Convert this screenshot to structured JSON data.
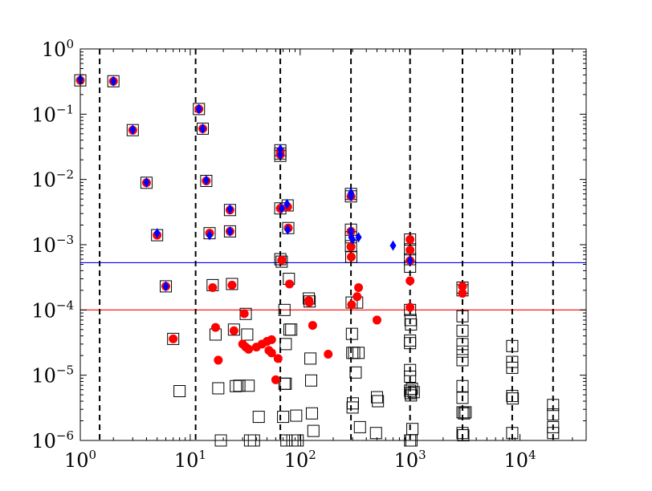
{
  "chart_data": {
    "type": "scatter",
    "x_scale": "log",
    "y_scale": "log",
    "xlim": [
      1,
      40000
    ],
    "ylim": [
      1e-06,
      1
    ],
    "x_ticks": [
      {
        "value": 1,
        "base": "10",
        "exp": "0"
      },
      {
        "value": 10,
        "base": "10",
        "exp": "1"
      },
      {
        "value": 100,
        "base": "10",
        "exp": "2"
      },
      {
        "value": 1000,
        "base": "10",
        "exp": "3"
      },
      {
        "value": 10000,
        "base": "10",
        "exp": "4"
      }
    ],
    "y_ticks": [
      {
        "value": 1e-06,
        "base": "10",
        "exp": "−6"
      },
      {
        "value": 1e-05,
        "base": "10",
        "exp": "−5"
      },
      {
        "value": 0.0001,
        "base": "10",
        "exp": "−4"
      },
      {
        "value": 0.001,
        "base": "10",
        "exp": "−3"
      },
      {
        "value": 0.01,
        "base": "10",
        "exp": "−2"
      },
      {
        "value": 0.1,
        "base": "10",
        "exp": "−1"
      },
      {
        "value": 1,
        "base": "10",
        "exp": "0"
      }
    ],
    "vertical_lines": [
      1.5,
      11.2,
      66,
      290,
      1000,
      3000,
      8500,
      20000
    ],
    "horizontal_lines": [
      {
        "y": 0.00053,
        "color": "#0000ff"
      },
      {
        "y": 0.0001,
        "color": "#ff0000"
      }
    ],
    "colors": {
      "squares": "#000000",
      "circles": "#ff0000",
      "diamonds": "#0000ff",
      "vlines": "#000000"
    },
    "series": [
      {
        "marker": "square",
        "points": [
          [
            1,
            0.33
          ],
          [
            2,
            0.32
          ],
          [
            3,
            0.057
          ],
          [
            4,
            0.0089
          ],
          [
            5,
            0.0014
          ],
          [
            6,
            0.00023
          ],
          [
            7,
            3.6e-05
          ],
          [
            8,
            5.7e-06
          ],
          [
            12,
            0.12
          ],
          [
            13,
            0.06
          ],
          [
            14,
            0.0095
          ],
          [
            15,
            0.0015
          ],
          [
            16,
            0.00024
          ],
          [
            17,
            4.2e-05
          ],
          [
            18,
            6.3e-06
          ],
          [
            19,
            1e-06
          ],
          [
            23,
            0.0034
          ],
          [
            23,
            0.0016
          ],
          [
            24,
            0.00025
          ],
          [
            25,
            5e-05
          ],
          [
            26,
            6.8e-06
          ],
          [
            28,
            6.9e-06
          ],
          [
            32,
            8.7e-05
          ],
          [
            33,
            4.2e-05
          ],
          [
            34,
            6.9e-06
          ],
          [
            35,
            1e-06
          ],
          [
            38,
            1e-06
          ],
          [
            42,
            2.3e-06
          ],
          [
            66,
            0.028
          ],
          [
            66,
            0.025
          ],
          [
            66,
            0.023
          ],
          [
            66,
            0.0036
          ],
          [
            66,
            0.0006
          ],
          [
            68,
            0.00055
          ],
          [
            72,
            0.0001
          ],
          [
            70,
            2.3e-06
          ],
          [
            72,
            7.4e-06
          ],
          [
            74,
            7.4e-06
          ],
          [
            74,
            3e-05
          ],
          [
            75,
            1e-06
          ],
          [
            77,
            0.004
          ],
          [
            78,
            0.0018
          ],
          [
            79,
            0.0003
          ],
          [
            80,
            5e-05
          ],
          [
            83,
            5e-05
          ],
          [
            85,
            1e-06
          ],
          [
            90,
            1e-06
          ],
          [
            92,
            2.4e-06
          ],
          [
            95,
            1e-06
          ],
          [
            120,
            0.00015
          ],
          [
            122,
            0.000135
          ],
          [
            124,
            1.8e-05
          ],
          [
            126,
            8.3e-06
          ],
          [
            128,
            2.6e-06
          ],
          [
            132,
            1.4e-06
          ],
          [
            290,
            0.006
          ],
          [
            290,
            0.0055
          ],
          [
            290,
            0.0017
          ],
          [
            290,
            0.0013
          ],
          [
            290,
            0.00095
          ],
          [
            292,
            0.00065
          ],
          [
            294,
            0.00013
          ],
          [
            296,
            4.3e-05
          ],
          [
            298,
            2.2e-05
          ],
          [
            300,
            3.2e-06
          ],
          [
            302,
            3.7e-06
          ],
          [
            310,
            2.2e-05
          ],
          [
            320,
            1.1e-05
          ],
          [
            330,
            0.00013
          ],
          [
            340,
            2.2e-05
          ],
          [
            350,
            1.6e-06
          ],
          [
            500,
            4.6e-06
          ],
          [
            510,
            4e-06
          ],
          [
            490,
            1.3e-06
          ],
          [
            1000,
            0.0012
          ],
          [
            1000,
            0.00085
          ],
          [
            1000,
            0.0006
          ],
          [
            1000,
            0.00046
          ],
          [
            1000,
            0.0001
          ],
          [
            1010,
            7e-05
          ],
          [
            1020,
            6e-05
          ],
          [
            1000,
            3.4e-05
          ],
          [
            1000,
            3.1e-05
          ],
          [
            1000,
            1.2e-05
          ],
          [
            1000,
            9.5e-06
          ],
          [
            1000,
            5.8e-06
          ],
          [
            1010,
            5.3e-06
          ],
          [
            1020,
            4.9e-06
          ],
          [
            1040,
            6.2e-06
          ],
          [
            1080,
            5.5e-06
          ],
          [
            1050,
            1.5e-06
          ],
          [
            1000,
            1e-06
          ],
          [
            1030,
            1e-06
          ],
          [
            3000,
            0.00022
          ],
          [
            3000,
            0.0002
          ],
          [
            3000,
            8e-05
          ],
          [
            3000,
            4.8e-05
          ],
          [
            3000,
            3e-05
          ],
          [
            3000,
            2.3e-05
          ],
          [
            3000,
            1.7e-05
          ],
          [
            3000,
            6.8e-06
          ],
          [
            3000,
            4.5e-06
          ],
          [
            3000,
            2.7e-06
          ],
          [
            3100,
            2.6e-06
          ],
          [
            3200,
            2.7e-06
          ],
          [
            3000,
            1.3e-06
          ],
          [
            3050,
            1.2e-06
          ],
          [
            8500,
            2.8e-05
          ],
          [
            8500,
            1.6e-05
          ],
          [
            8500,
            1.3e-05
          ],
          [
            8500,
            4.8e-06
          ],
          [
            8600,
            4.4e-06
          ],
          [
            8500,
            1.3e-06
          ],
          [
            20000,
            3.5e-06
          ],
          [
            20000,
            2.5e-06
          ],
          [
            20000,
            1.6e-06
          ],
          [
            20000,
            1.3e-06
          ]
        ]
      },
      {
        "marker": "circle",
        "points": [
          [
            1,
            0.33
          ],
          [
            2,
            0.32
          ],
          [
            3,
            0.057
          ],
          [
            4,
            0.0089
          ],
          [
            5,
            0.0014
          ],
          [
            6,
            0.00023
          ],
          [
            7,
            3.6e-05
          ],
          [
            12,
            0.12
          ],
          [
            13,
            0.06
          ],
          [
            14,
            0.0095
          ],
          [
            15,
            0.0015
          ],
          [
            16,
            0.00022
          ],
          [
            17,
            5.4e-05
          ],
          [
            18,
            1.7e-05
          ],
          [
            23,
            0.0034
          ],
          [
            23,
            0.0016
          ],
          [
            24,
            0.00024
          ],
          [
            25,
            4.8e-05
          ],
          [
            30,
            3e-05
          ],
          [
            31,
            8.8e-05
          ],
          [
            32,
            2.7e-05
          ],
          [
            34,
            2.5e-05
          ],
          [
            40,
            2.7e-05
          ],
          [
            45,
            3e-05
          ],
          [
            50,
            3.3e-05
          ],
          [
            55,
            3.5e-05
          ],
          [
            52,
            2.4e-05
          ],
          [
            55,
            2.2e-05
          ],
          [
            60,
            8.5e-06
          ],
          [
            63,
            1.8e-05
          ],
          [
            66,
            0.027
          ],
          [
            66,
            0.024
          ],
          [
            66,
            0.0036
          ],
          [
            68,
            0.00058
          ],
          [
            77,
            0.0038
          ],
          [
            78,
            0.0018
          ],
          [
            80,
            0.00025
          ],
          [
            120,
            0.00014
          ],
          [
            121,
            0.00013
          ],
          [
            130,
            5.8e-05
          ],
          [
            180,
            2.1e-05
          ],
          [
            290,
            0.0055
          ],
          [
            290,
            0.0016
          ],
          [
            290,
            0.00093
          ],
          [
            292,
            0.00065
          ],
          [
            294,
            0.00012
          ],
          [
            330,
            0.00016
          ],
          [
            340,
            0.00022
          ],
          [
            500,
            7e-05
          ],
          [
            1000,
            0.0012
          ],
          [
            1000,
            0.00083
          ],
          [
            1000,
            0.00057
          ],
          [
            1000,
            0.00028
          ],
          [
            1000,
            0.00011
          ],
          [
            3000,
            0.00023
          ],
          [
            3000,
            0.00018
          ]
        ]
      },
      {
        "marker": "diamond",
        "points": [
          [
            1,
            0.34
          ],
          [
            2,
            0.32
          ],
          [
            3,
            0.058
          ],
          [
            4,
            0.009
          ],
          [
            5,
            0.0015
          ],
          [
            6,
            0.00023
          ],
          [
            12,
            0.12
          ],
          [
            13,
            0.06
          ],
          [
            14,
            0.0097
          ],
          [
            15,
            0.0014
          ],
          [
            23,
            0.0035
          ],
          [
            23,
            0.0016
          ],
          [
            66,
            0.029
          ],
          [
            66,
            0.024
          ],
          [
            68,
            0.0036
          ],
          [
            76,
            0.0042
          ],
          [
            77,
            0.0017
          ],
          [
            290,
            0.0062
          ],
          [
            290,
            0.0055
          ],
          [
            290,
            0.0016
          ],
          [
            292,
            0.0013
          ],
          [
            300,
            0.0012
          ],
          [
            340,
            0.0013
          ],
          [
            700,
            0.00097
          ],
          [
            1000,
            0.00057
          ]
        ]
      }
    ]
  }
}
